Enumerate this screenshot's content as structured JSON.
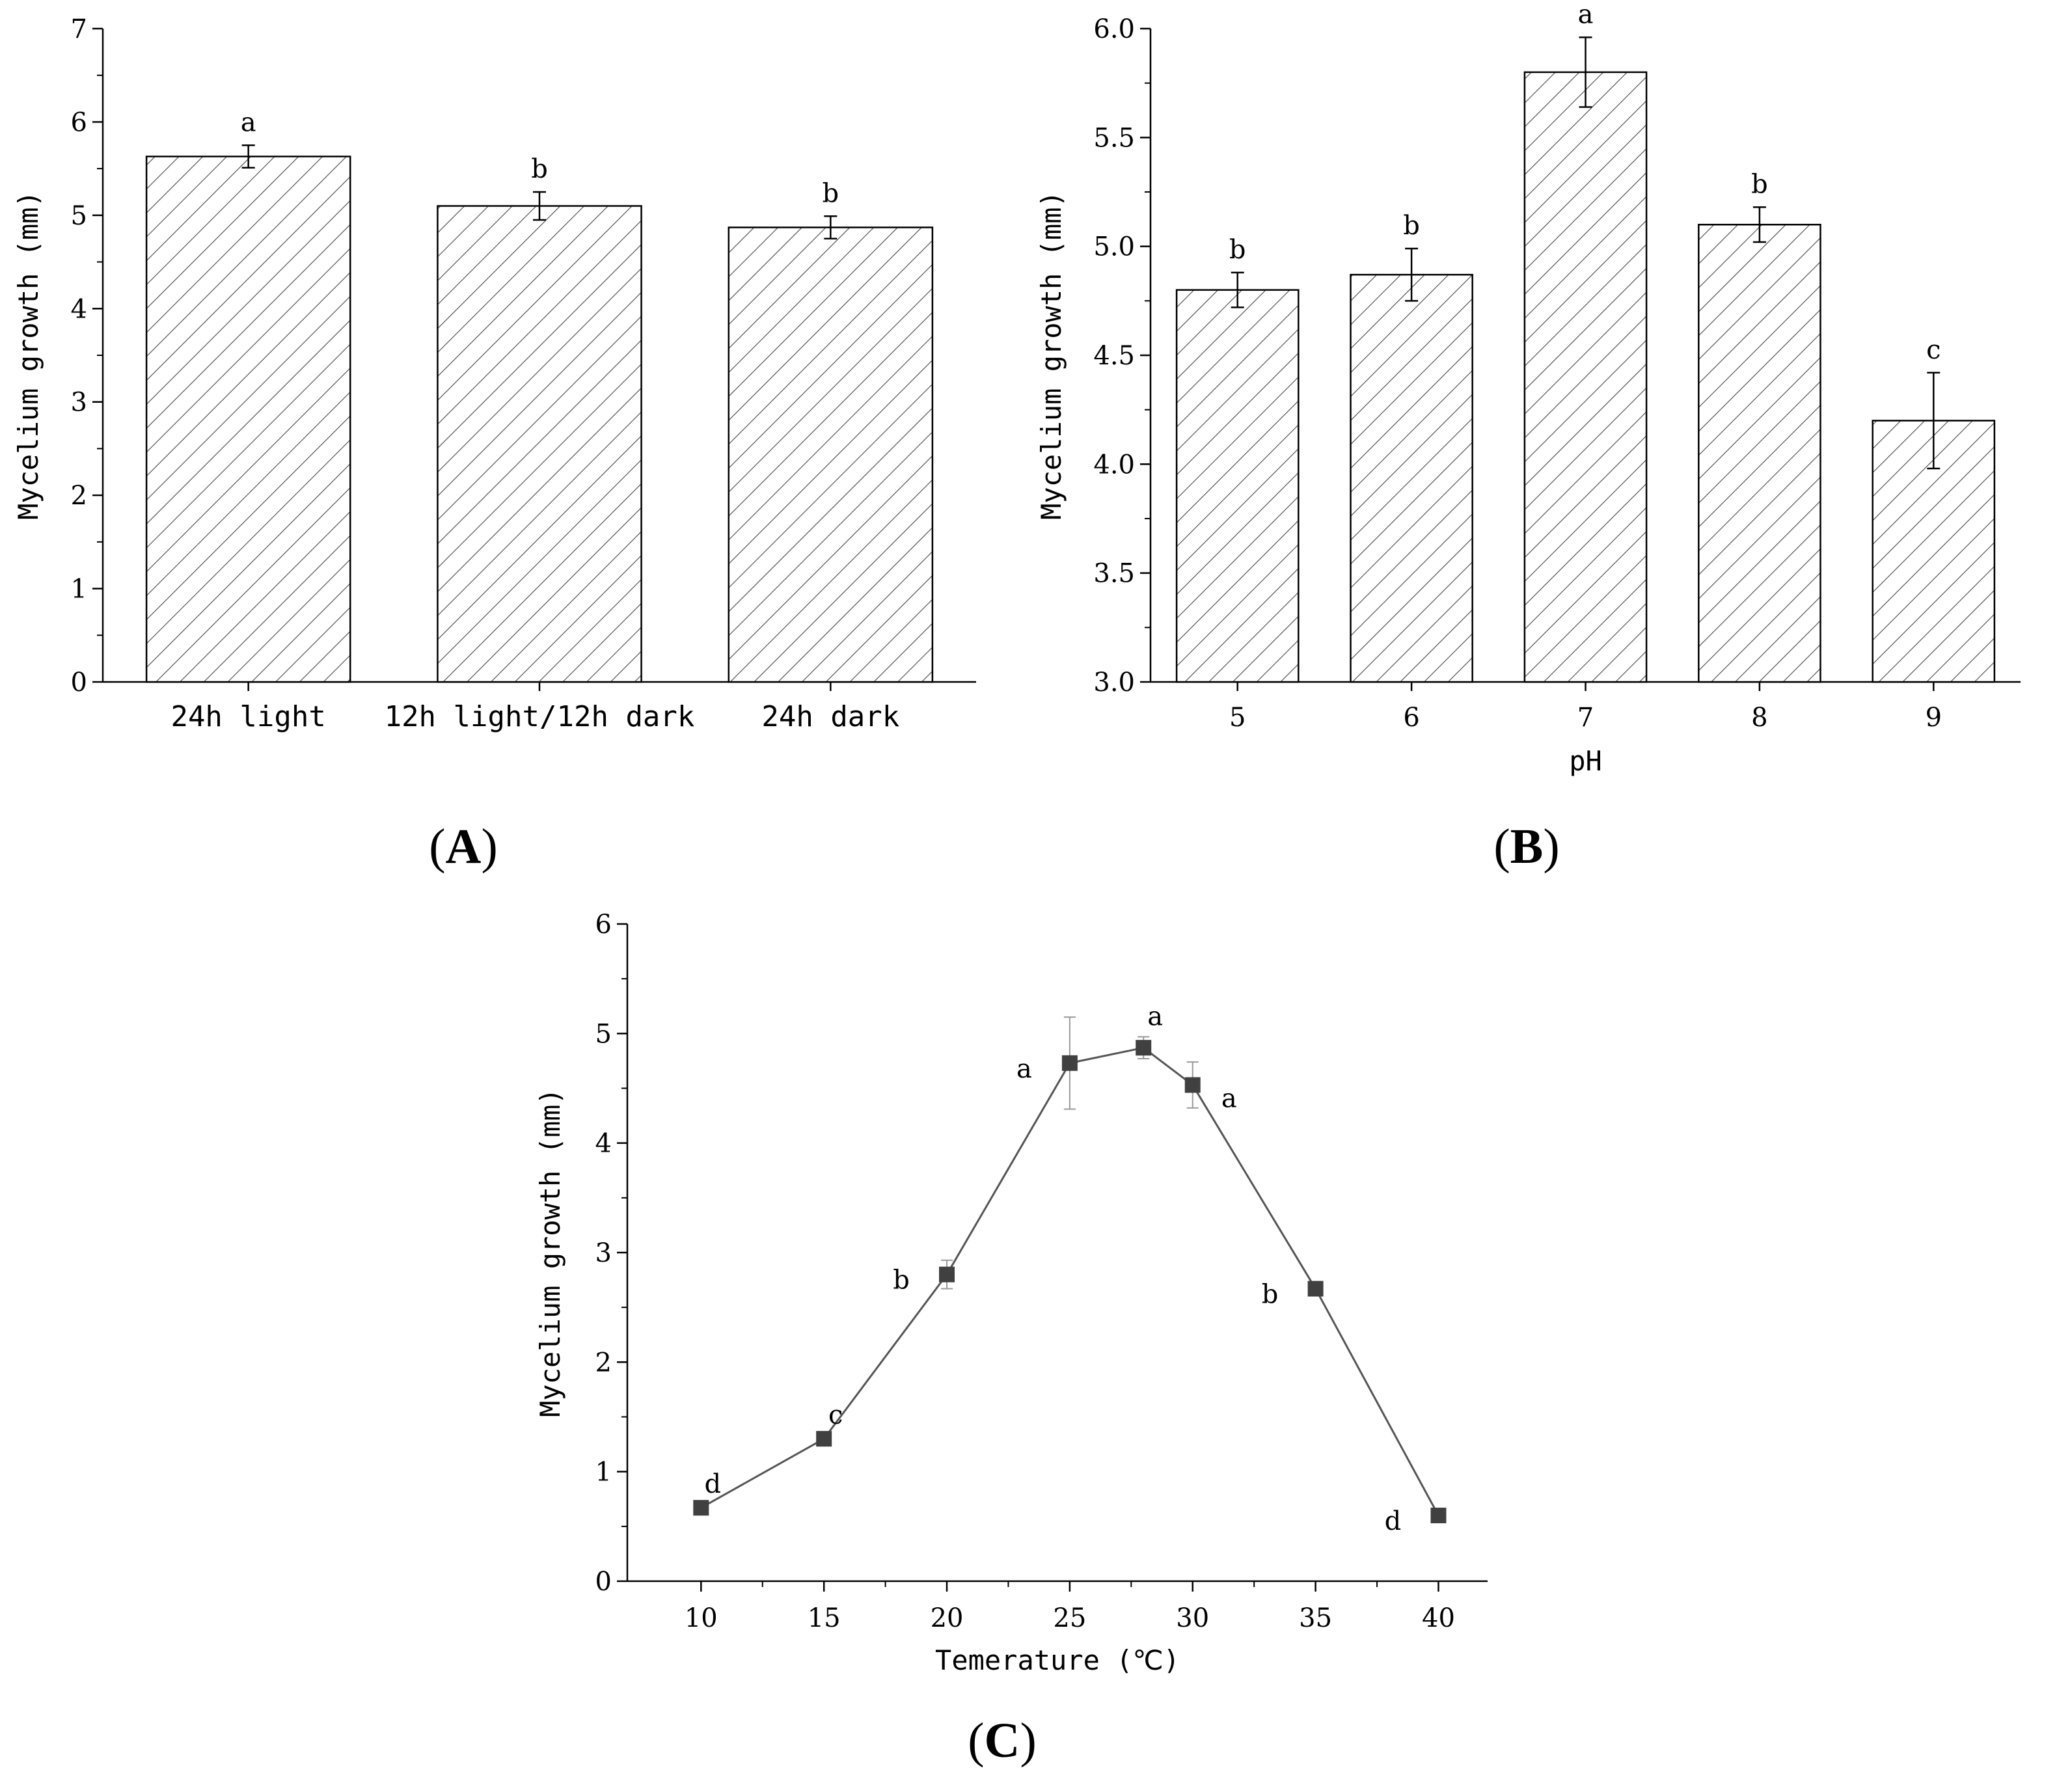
{
  "colors": {
    "ink": "#000000",
    "bar_fill": "#ffffff",
    "hatch": "#444444",
    "line": "#555555",
    "marker": "#404040",
    "errorbar_c": "#999999"
  },
  "chart_data": [
    {
      "id": "A",
      "type": "bar",
      "panel_label": {
        "open": "(",
        "letter": "A",
        "close": ")"
      },
      "ylabel": "Mycelium growth (mm)",
      "xlabel": "",
      "ylim": [
        0,
        7
      ],
      "yticks": [
        0,
        1,
        2,
        3,
        4,
        5,
        6,
        7
      ],
      "ytick_labels": [
        "0",
        "1",
        "2",
        "3",
        "4",
        "5",
        "6",
        "7"
      ],
      "categories": [
        "24h light",
        "12h light/12h dark",
        "24h dark"
      ],
      "values": [
        5.63,
        5.1,
        4.87
      ],
      "errors": [
        0.12,
        0.15,
        0.12
      ],
      "letters": [
        "a",
        "b",
        "b"
      ]
    },
    {
      "id": "B",
      "type": "bar",
      "panel_label": {
        "open": "(",
        "letter": "B",
        "close": ")"
      },
      "ylabel": "Mycelium growth (mm)",
      "xlabel": "pH",
      "ylim": [
        3.0,
        6.0
      ],
      "yticks": [
        3.0,
        3.5,
        4.0,
        4.5,
        5.0,
        5.5,
        6.0
      ],
      "ytick_labels": [
        "3.0",
        "3.5",
        "4.0",
        "4.5",
        "5.0",
        "5.5",
        "6.0"
      ],
      "categories": [
        "5",
        "6",
        "7",
        "8",
        "9"
      ],
      "values": [
        4.8,
        4.87,
        5.8,
        5.1,
        4.2
      ],
      "errors": [
        0.08,
        0.12,
        0.16,
        0.08,
        0.22
      ],
      "letters": [
        "b",
        "b",
        "a",
        "b",
        "c"
      ]
    },
    {
      "id": "C",
      "type": "line",
      "panel_label": {
        "open": "(",
        "letter": "C",
        "close": ")"
      },
      "ylabel": "Mycelium growth (mm)",
      "xlabel": "Temerature (℃)",
      "xlim": [
        7,
        42
      ],
      "ylim": [
        0,
        6
      ],
      "xticks": [
        10,
        15,
        20,
        25,
        30,
        35,
        40
      ],
      "xtick_labels": [
        "10",
        "15",
        "20",
        "25",
        "30",
        "35",
        "40"
      ],
      "yticks": [
        0,
        1,
        2,
        3,
        4,
        5,
        6
      ],
      "ytick_labels": [
        "0",
        "1",
        "2",
        "3",
        "4",
        "5",
        "6"
      ],
      "x": [
        10,
        15,
        20,
        25,
        28,
        30,
        35,
        40
      ],
      "y": [
        0.67,
        1.3,
        2.8,
        4.73,
        4.87,
        4.53,
        2.67,
        0.6
      ],
      "errors": [
        0.03,
        0.03,
        0.13,
        0.42,
        0.1,
        0.21,
        0.03,
        0.03
      ],
      "letters": [
        "d",
        "c",
        "b",
        "a",
        "a",
        "a",
        "b",
        "d"
      ],
      "letter_side": [
        "above",
        "above",
        "left",
        "left",
        "above",
        "right",
        "left",
        "left"
      ]
    }
  ]
}
